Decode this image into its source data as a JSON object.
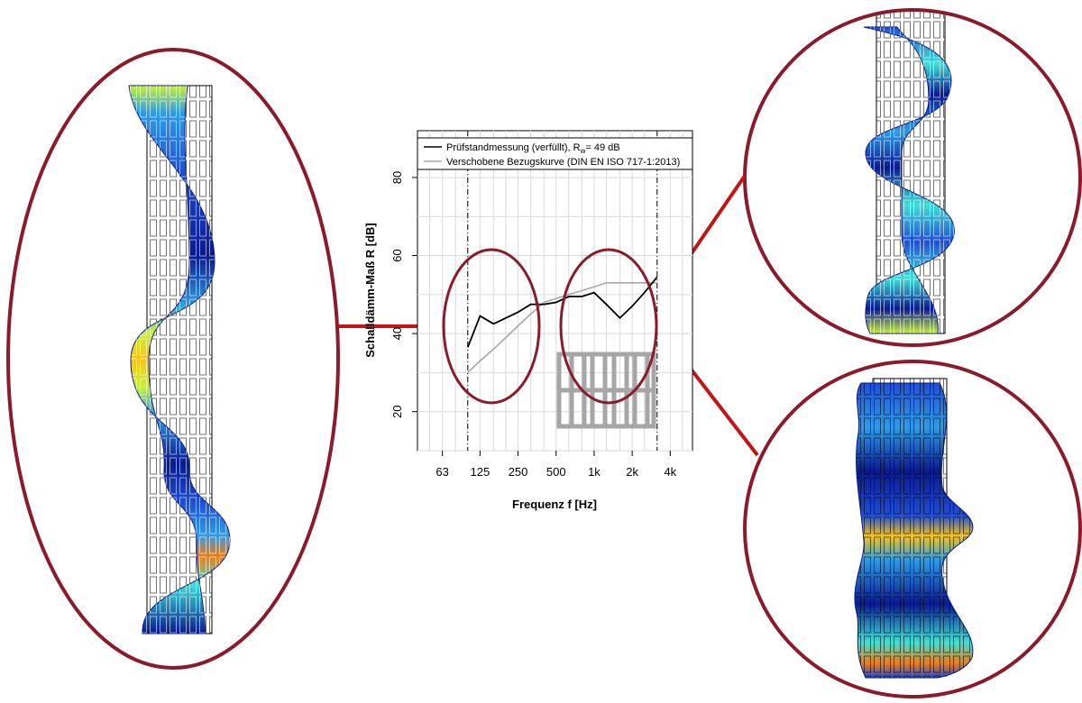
{
  "colors": {
    "ring": "#8b1a2b",
    "connector": "#c41414",
    "measurement": "#000000",
    "reference": "#a8a8a8",
    "grid": "#d9d9d9",
    "brick": "#a6a6a6",
    "colormap": [
      "#0a1a8f",
      "#1f4fd6",
      "#2d9ce8",
      "#3fe0d6",
      "#c8f03a",
      "#f7c41c",
      "#f07c12"
    ]
  },
  "chart_data": {
    "type": "line",
    "xlabel": "Frequenz f [Hz]",
    "ylabel": "Schalldämm-Maß R [dB]",
    "x_scale": "log",
    "xlim": [
      40,
      6000
    ],
    "ylim": [
      10,
      92
    ],
    "x_ticks": [
      {
        "value": 63,
        "label": "63"
      },
      {
        "value": 125,
        "label": "125"
      },
      {
        "value": 250,
        "label": "250"
      },
      {
        "value": 500,
        "label": "500"
      },
      {
        "value": 1000,
        "label": "1k"
      },
      {
        "value": 2000,
        "label": "2k"
      },
      {
        "value": 4000,
        "label": "4k"
      }
    ],
    "y_ticks": [
      20,
      40,
      60,
      80
    ],
    "vlines": [
      100,
      3150
    ],
    "grid": true,
    "legend_position": "top",
    "legend": {
      "measurement_prefix": "Prüfstandmessung (verfüllt), R",
      "measurement_sub": "w",
      "measurement_suffix": "= 49 dB",
      "reference": "Verschobene Bezugskurve (DIN EN ISO 717-1:2013)"
    },
    "series": [
      {
        "key": "measurement",
        "x": [
          100,
          125,
          160,
          200,
          250,
          315,
          400,
          500,
          630,
          800,
          1000,
          1250,
          1600,
          2000,
          2500,
          3150
        ],
        "y": [
          36.5,
          44.5,
          42.5,
          44,
          45.5,
          47.5,
          47.5,
          48,
          49.5,
          49.5,
          50.5,
          47.5,
          44,
          47,
          50.5,
          54.5
        ]
      },
      {
        "key": "reference",
        "x": [
          100,
          125,
          160,
          200,
          250,
          315,
          400,
          500,
          630,
          800,
          1000,
          1250,
          1600,
          2000,
          2500,
          3150
        ],
        "y": [
          30,
          33,
          36,
          39,
          42,
          45,
          48,
          49,
          50,
          51,
          52,
          53,
          53,
          53,
          53,
          53
        ]
      }
    ]
  }
}
